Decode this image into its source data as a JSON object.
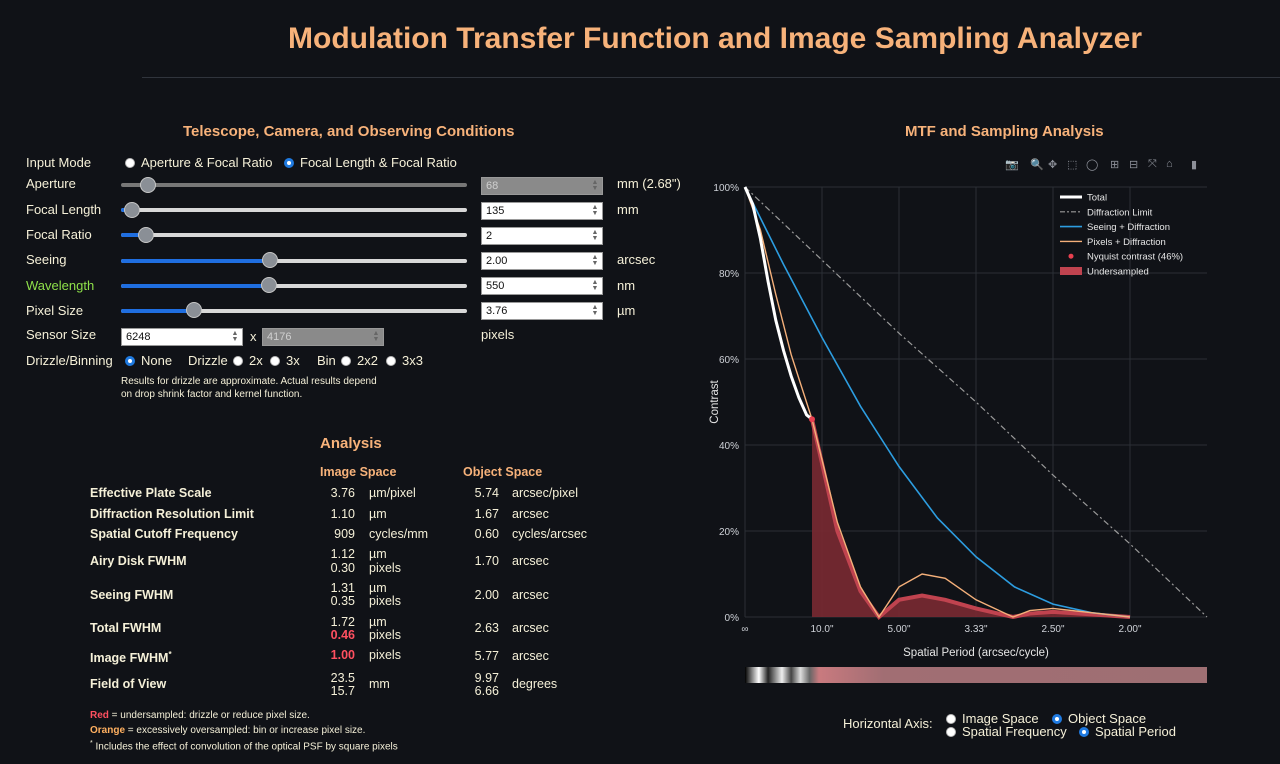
{
  "title": "Modulation Transfer Function and Image Sampling Analyzer",
  "left": {
    "heading": "Telescope, Camera, and Observing Conditions",
    "input_mode": {
      "label": "Input Mode",
      "opt1": "Aperture & Focal Ratio",
      "opt2": "Focal Length & Focal Ratio",
      "selected": "Focal Length & Focal Ratio"
    },
    "aperture": {
      "label": "Aperture",
      "value": "68",
      "unit": "mm (2.68\")",
      "slider_fraction": 0.08
    },
    "focal_length": {
      "label": "Focal Length",
      "value": "135",
      "unit": "mm",
      "slider_fraction": 0.03
    },
    "focal_ratio": {
      "label": "Focal Ratio",
      "value": "2",
      "unit": "",
      "slider_fraction": 0.07
    },
    "seeing": {
      "label": "Seeing",
      "value": "2.00",
      "unit": "arcsec",
      "slider_fraction": 0.43
    },
    "wavelength": {
      "label": "Wavelength",
      "value": "550",
      "unit": "nm",
      "slider_fraction": 0.43
    },
    "pixel_size": {
      "label": "Pixel Size",
      "value": "3.76",
      "unit": "µm",
      "slider_fraction": 0.21
    },
    "sensor_size": {
      "label": "Sensor Size",
      "w": "6248",
      "x": "x",
      "h": "4176",
      "unit": "pixels"
    },
    "drizzle": {
      "label": "Drizzle/Binning",
      "none": "None",
      "drizzle": "Drizzle",
      "d2": "2x",
      "d3": "3x",
      "bin": "Bin",
      "b2": "2x2",
      "b3": "3x3",
      "selected": "None"
    },
    "note1": "Results for drizzle are approximate. Actual results depend",
    "note2": "on drop shrink factor and kernel function."
  },
  "analysis": {
    "heading": "Analysis",
    "col_image": "Image Space",
    "col_object": "Object Space",
    "rows": {
      "plate": {
        "label": "Effective Plate Scale",
        "iv": "3.76",
        "iu": "µm/pixel",
        "ov": "5.74",
        "ou": "arcsec/pixel"
      },
      "diff": {
        "label": "Diffraction Resolution Limit",
        "iv": "1.10",
        "iu": "µm",
        "ov": "1.67",
        "ou": "arcsec"
      },
      "cutoff": {
        "label": "Spatial Cutoff Frequency",
        "iv": "909",
        "iu": "cycles/mm",
        "ov": "0.60",
        "ou": "cycles/arcsec"
      },
      "airy": {
        "label": "Airy Disk FWHM",
        "iv": "1.12",
        "iu": "µm",
        "iv2": "0.30",
        "iu2": "pixels",
        "ov": "1.70",
        "ou": "arcsec"
      },
      "seeing": {
        "label": "Seeing FWHM",
        "iv": "1.31",
        "iu": "µm",
        "iv2": "0.35",
        "iu2": "pixels",
        "ov": "2.00",
        "ou": "arcsec"
      },
      "total": {
        "label": "Total FWHM",
        "iv": "1.72",
        "iu": "µm",
        "iv2": "0.46",
        "iu2": "pixels",
        "ov": "2.63",
        "ou": "arcsec"
      },
      "image": {
        "label": "Image FWHM",
        "sup": "*",
        "iv": "1.00",
        "iu": "pixels",
        "ov": "5.77",
        "ou": "arcsec"
      },
      "fov": {
        "label": "Field of View",
        "iv": "23.5",
        "iv2": "15.7",
        "iu": "mm",
        "ov": "9.97",
        "ov2": "6.66",
        "ou": "degrees"
      }
    },
    "foot_red": "Red",
    "foot_red_text": " = undersampled: drizzle or reduce pixel size.",
    "foot_orange": "Orange",
    "foot_orange_text": " = excessively oversampled: bin or increase pixel size.",
    "foot_star": "*",
    "foot_star_text": " Includes the effect of convolution of the optical PSF by square pixels"
  },
  "chart_panel": {
    "heading": "MTF and Sampling Analysis",
    "toolbar_icons": [
      "camera-icon",
      "zoom-icon",
      "pan-icon",
      "box-select-icon",
      "lasso-icon",
      "zoom-in-icon",
      "zoom-out-icon",
      "autoscale-icon",
      "home-icon",
      "plotly-logo-icon"
    ],
    "horizontal_axis": {
      "label": "Horizontal Axis:",
      "image_space": "Image Space",
      "object_space": "Object Space",
      "spatial_frequency": "Spatial Frequency",
      "spatial_period": "Spatial Period",
      "selected_space": "Object Space",
      "selected_mode": "Spatial Period"
    }
  },
  "chart_data": {
    "type": "line",
    "xlabel": "Spatial Period (arcsec/cycle)",
    "ylabel": "Contrast",
    "x_ticks": [
      "∞",
      "10.0\"",
      "5.00\"",
      "3.33\"",
      "2.50\"",
      "2.00\""
    ],
    "x_tick_freq": [
      0,
      0.1,
      0.2,
      0.3,
      0.4,
      0.5
    ],
    "y_ticks": [
      "0%",
      "20%",
      "40%",
      "60%",
      "80%",
      "100%"
    ],
    "ylim": [
      0,
      100
    ],
    "xlim_freq": [
      0,
      0.6
    ],
    "nyquist_freq": 0.087,
    "nyquist_contrast": 46,
    "legend": [
      "Total",
      "Diffraction Limit",
      "Seeing + Diffraction",
      "Pixels + Diffraction",
      "Nyquist contrast (46%)",
      "Undersampled"
    ],
    "series": [
      {
        "name": "Total",
        "color": "#ffffff",
        "x": [
          0,
          0.01,
          0.02,
          0.03,
          0.04,
          0.05,
          0.06,
          0.07,
          0.08,
          0.087
        ],
        "y": [
          100,
          96,
          88,
          78,
          69,
          62,
          56,
          51,
          47,
          46
        ]
      },
      {
        "name": "Diffraction Limit",
        "color": "#9a9a9a",
        "x": [
          0,
          0.1,
          0.2,
          0.3,
          0.4,
          0.5,
          0.6
        ],
        "y": [
          100,
          83,
          66,
          50,
          33,
          17,
          0
        ]
      },
      {
        "name": "Seeing + Diffraction",
        "color": "#2d9de0",
        "x": [
          0,
          0.05,
          0.1,
          0.15,
          0.2,
          0.25,
          0.3,
          0.35,
          0.4,
          0.45,
          0.5
        ],
        "y": [
          100,
          82,
          65,
          49,
          35,
          23,
          14,
          7,
          3,
          1,
          0
        ]
      },
      {
        "name": "Pixels + Diffraction",
        "color": "#f5b07a",
        "x": [
          0,
          0.02,
          0.04,
          0.06,
          0.087,
          0.12,
          0.15,
          0.174,
          0.2,
          0.23,
          0.26,
          0.3,
          0.348,
          0.37,
          0.4,
          0.45,
          0.5
        ],
        "y": [
          100,
          90,
          75,
          61,
          46,
          22,
          7,
          0,
          7,
          10,
          9,
          4,
          0,
          1.5,
          2,
          1,
          0
        ]
      }
    ],
    "undersampled": {
      "name": "Undersampled",
      "color": "#c0434f",
      "x": [
        0.087,
        0.12,
        0.15,
        0.174,
        0.2,
        0.23,
        0.26,
        0.3,
        0.348,
        0.37,
        0.4,
        0.45,
        0.5
      ],
      "y": [
        46,
        20,
        6,
        0,
        4,
        5,
        4,
        2,
        0,
        0.8,
        1.2,
        0.6,
        0
      ]
    }
  }
}
